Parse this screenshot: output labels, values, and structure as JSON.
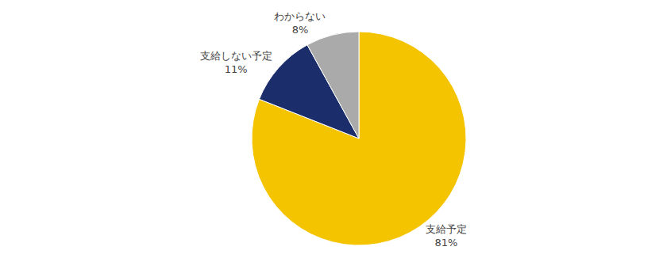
{
  "chart_data": {
    "type": "pie",
    "categories": [
      "支給予定",
      "支給しない予定",
      "わからない"
    ],
    "values": [
      81,
      11,
      8
    ],
    "value_labels": [
      "81%",
      "11%",
      "8%"
    ],
    "colors": [
      "#F5C400",
      "#1B2D6B",
      "#AAAAAA"
    ],
    "data_labels": true
  }
}
